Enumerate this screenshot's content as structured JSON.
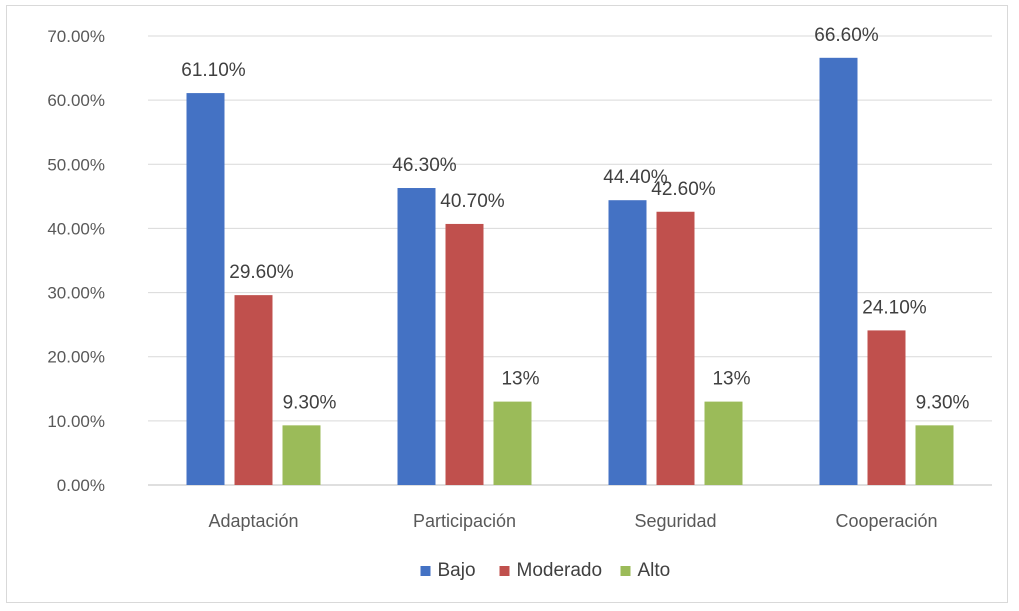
{
  "chart_data": {
    "type": "bar",
    "categories": [
      "Adaptación",
      "Participación",
      "Seguridad",
      "Cooperación"
    ],
    "series": [
      {
        "name": "Bajo",
        "color": "#4472c4",
        "values": [
          61.1,
          46.3,
          44.4,
          66.6
        ],
        "labels": [
          "61.10%",
          "46.30%",
          "44.40%",
          "66.60%"
        ]
      },
      {
        "name": "Moderado",
        "color": "#c0504d",
        "values": [
          29.6,
          40.7,
          42.6,
          24.1
        ],
        "labels": [
          "29.60%",
          "40.70%",
          "42.60%",
          "24.10%"
        ]
      },
      {
        "name": "Alto",
        "color": "#9bbb59",
        "values": [
          9.3,
          13,
          13,
          9.3
        ],
        "labels": [
          "9.30%",
          "13%",
          "13%",
          "9.30%"
        ]
      }
    ],
    "yticks": [
      "0.00%",
      "10.00%",
      "20.00%",
      "30.00%",
      "40.00%",
      "50.00%",
      "60.00%",
      "70.00%"
    ],
    "ylim": [
      0,
      70
    ],
    "grid": true,
    "legend": "bottom",
    "title": "",
    "xlabel": "",
    "ylabel": ""
  }
}
